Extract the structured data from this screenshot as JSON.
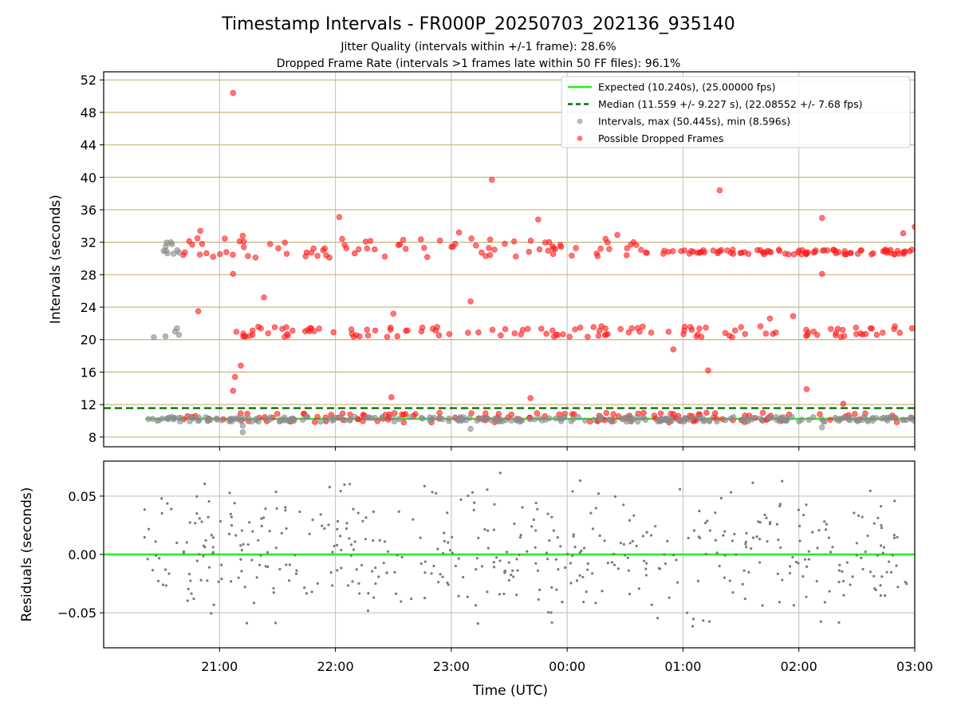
{
  "chart_data": [
    {
      "type": "scatter",
      "title": "Timestamp Intervals - FR000P_20250703_202136_935140",
      "subtitle_1": "Jitter Quality (intervals within +/-1 frame): 28.6%",
      "subtitle_2": "Dropped Frame Rate (intervals >1 frames late within 50 FF files): 96.1%",
      "ylabel": "Intervals (seconds)",
      "ylim": [
        6.8,
        53.0
      ],
      "yticks": [
        8,
        12,
        16,
        20,
        24,
        28,
        32,
        36,
        40,
        44,
        48,
        52
      ],
      "ytick_labels": [
        "8",
        "12",
        "16",
        "20",
        "24",
        "28",
        "32",
        "36",
        "40",
        "44",
        "48",
        "52"
      ],
      "xlim": [
        "2025-07-03T20:00",
        "2025-07-04T03:00"
      ],
      "grid": true,
      "legend_position": "upper-right",
      "colors": {
        "expected": "#22ee22",
        "median": "#007700",
        "intervals": "#8a8a8a",
        "dropped": "#ff2020",
        "hgrid": "#c8b67a"
      },
      "series": [
        {
          "name": "Expected (10.240s), (25.00000 fps)",
          "kind": "hline",
          "y": 10.24,
          "x_range": [
            "2025-07-03T20:22",
            "2025-07-04T03:00"
          ]
        },
        {
          "name": "Median (11.559 +/- 9.227 s), (22.08552 +/- 7.68 fps)",
          "kind": "hline-dashed",
          "y": 11.559
        },
        {
          "name": "Intervals, max (50.445s), min (8.596s)",
          "kind": "scatter"
        },
        {
          "name": "Possible Dropped Frames",
          "kind": "scatter"
        }
      ],
      "clusters_approx": [
        {
          "series": "Possible Dropped Frames",
          "x_from": "2025-07-03T20:38",
          "x_to": "2025-07-04T03:00",
          "y_center": 10.4,
          "y_spread": 0.6
        },
        {
          "series": "Possible Dropped Frames",
          "x_from": "2025-07-03T20:38",
          "x_to": "2025-07-04T00:40",
          "y_center": 31.3,
          "y_spread": 1.2
        },
        {
          "series": "Possible Dropped Frames",
          "x_from": "2025-07-04T00:40",
          "x_to": "2025-07-04T03:00",
          "y_center": 30.8,
          "y_spread": 0.3
        },
        {
          "series": "Possible Dropped Frames",
          "x_from": "2025-07-03T21:08",
          "x_to": "2025-07-04T03:00",
          "y_center": 21.0,
          "y_spread": 0.7
        },
        {
          "series": "Intervals, max (50.445s), min (8.596s)",
          "x_from": "2025-07-03T20:22",
          "x_to": "2025-07-03T20:40",
          "y_center": 31.3,
          "y_spread": 0.8
        },
        {
          "series": "Intervals, max (50.445s), min (8.596s)",
          "x_from": "2025-07-03T20:22",
          "x_to": "2025-07-04T03:00",
          "y_center": 10.2,
          "y_spread": 0.3
        }
      ],
      "outliers": [
        {
          "x": "2025-07-03T21:07",
          "y": 50.4,
          "series": "Possible Dropped Frames"
        },
        {
          "x": "2025-07-03T23:21",
          "y": 39.7,
          "series": "Possible Dropped Frames"
        },
        {
          "x": "2025-07-04T01:19",
          "y": 38.4,
          "series": "Possible Dropped Frames"
        },
        {
          "x": "2025-07-04T02:12",
          "y": 35.0,
          "series": "Possible Dropped Frames"
        },
        {
          "x": "2025-07-03T22:02",
          "y": 35.1,
          "series": "Possible Dropped Frames"
        },
        {
          "x": "2025-07-03T23:45",
          "y": 34.8,
          "series": "Possible Dropped Frames"
        },
        {
          "x": "2025-07-04T03:00",
          "y": 33.9,
          "series": "Possible Dropped Frames"
        },
        {
          "x": "2025-07-03T20:50",
          "y": 33.4,
          "series": "Possible Dropped Frames"
        },
        {
          "x": "2025-07-03T23:04",
          "y": 33.2,
          "series": "Possible Dropped Frames"
        },
        {
          "x": "2025-07-04T02:54",
          "y": 33.1,
          "series": "Possible Dropped Frames"
        },
        {
          "x": "2025-07-03T21:12",
          "y": 32.8,
          "series": "Possible Dropped Frames"
        },
        {
          "x": "2025-07-04T00:26",
          "y": 32.9,
          "series": "Possible Dropped Frames"
        },
        {
          "x": "2025-07-03T21:07",
          "y": 28.1,
          "series": "Possible Dropped Frames"
        },
        {
          "x": "2025-07-04T02:12",
          "y": 28.1,
          "series": "Possible Dropped Frames"
        },
        {
          "x": "2025-07-03T21:23",
          "y": 25.2,
          "series": "Possible Dropped Frames"
        },
        {
          "x": "2025-07-03T23:10",
          "y": 24.7,
          "series": "Possible Dropped Frames"
        },
        {
          "x": "2025-07-03T20:49",
          "y": 23.5,
          "series": "Possible Dropped Frames"
        },
        {
          "x": "2025-07-03T22:30",
          "y": 23.2,
          "series": "Possible Dropped Frames"
        },
        {
          "x": "2025-07-04T01:57",
          "y": 22.9,
          "series": "Possible Dropped Frames"
        },
        {
          "x": "2025-07-04T01:45",
          "y": 22.6,
          "series": "Possible Dropped Frames"
        },
        {
          "x": "2025-07-04T00:55",
          "y": 18.8,
          "series": "Possible Dropped Frames"
        },
        {
          "x": "2025-07-03T21:11",
          "y": 16.8,
          "series": "Possible Dropped Frames"
        },
        {
          "x": "2025-07-04T01:13",
          "y": 16.2,
          "series": "Possible Dropped Frames"
        },
        {
          "x": "2025-07-03T21:08",
          "y": 15.4,
          "series": "Possible Dropped Frames"
        },
        {
          "x": "2025-07-04T02:04",
          "y": 13.9,
          "series": "Possible Dropped Frames"
        },
        {
          "x": "2025-07-03T21:07",
          "y": 13.7,
          "series": "Possible Dropped Frames"
        },
        {
          "x": "2025-07-03T22:29",
          "y": 12.9,
          "series": "Possible Dropped Frames"
        },
        {
          "x": "2025-07-03T23:41",
          "y": 12.8,
          "series": "Possible Dropped Frames"
        },
        {
          "x": "2025-07-04T02:23",
          "y": 12.1,
          "series": "Possible Dropped Frames"
        },
        {
          "x": "2025-07-03T21:12",
          "y": 9.4,
          "series": "Intervals, max (50.445s), min (8.596s)"
        },
        {
          "x": "2025-07-03T21:12",
          "y": 8.6,
          "series": "Intervals, max (50.445s), min (8.596s)"
        },
        {
          "x": "2025-07-03T23:10",
          "y": 9.0,
          "series": "Intervals, max (50.445s), min (8.596s)"
        },
        {
          "x": "2025-07-04T02:12",
          "y": 9.2,
          "series": "Intervals, max (50.445s), min (8.596s)"
        },
        {
          "x": "2025-07-03T20:26",
          "y": 20.3,
          "series": "Intervals, max (50.445s), min (8.596s)"
        },
        {
          "x": "2025-07-03T20:32",
          "y": 20.4,
          "series": "Intervals, max (50.445s), min (8.596s)"
        },
        {
          "x": "2025-07-03T20:37",
          "y": 21.0,
          "series": "Intervals, max (50.445s), min (8.596s)"
        },
        {
          "x": "2025-07-03T20:38",
          "y": 21.4,
          "series": "Intervals, max (50.445s), min (8.596s)"
        },
        {
          "x": "2025-07-03T20:39",
          "y": 20.6,
          "series": "Intervals, max (50.445s), min (8.596s)"
        }
      ]
    },
    {
      "type": "scatter",
      "xlabel": "Time (UTC)",
      "ylabel": "Residuals (seconds)",
      "ylim": [
        -0.08,
        0.08
      ],
      "yticks": [
        -0.05,
        0.0,
        0.05
      ],
      "ytick_labels": [
        "−0.05",
        "0.00",
        "0.05"
      ],
      "xlim": [
        "2025-07-03T20:00",
        "2025-07-04T03:00"
      ],
      "xticks": [
        "2025-07-03T21:00",
        "2025-07-03T22:00",
        "2025-07-03T23:00",
        "2025-07-04T00:00",
        "2025-07-04T01:00",
        "2025-07-04T02:00",
        "2025-07-04T03:00"
      ],
      "xtick_labels": [
        "21:00",
        "22:00",
        "23:00",
        "00:00",
        "01:00",
        "02:00",
        "03:00"
      ],
      "grid": true,
      "series": [
        {
          "kind": "hline",
          "y": 0.0
        },
        {
          "kind": "scatter",
          "x_from": "2025-07-03T20:20",
          "x_to": "2025-07-04T03:00",
          "y_center": 0.0,
          "y_spread": 0.045
        }
      ]
    }
  ]
}
